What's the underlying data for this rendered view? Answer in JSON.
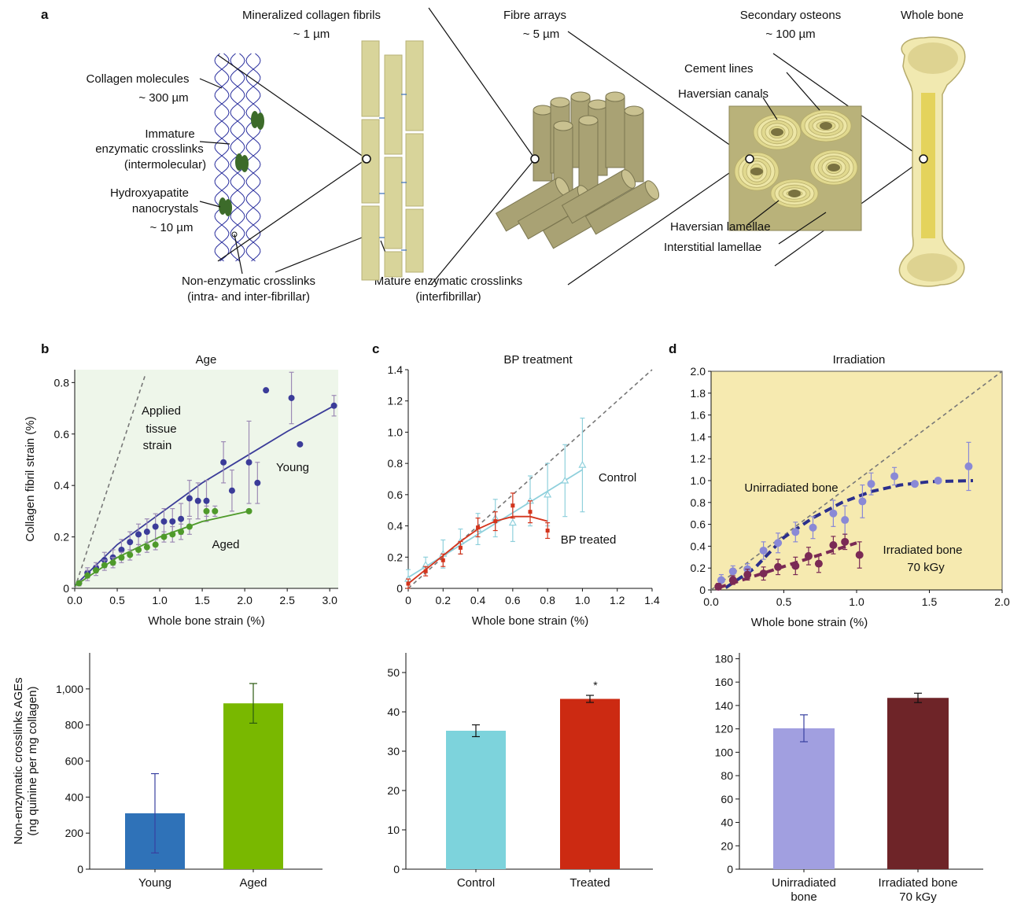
{
  "panels": {
    "a": "a",
    "b": "b",
    "c": "c",
    "d": "d"
  },
  "schematic": {
    "scales": [
      {
        "title": "Mineralized collagen fibrils",
        "size": "~ 1 µm"
      },
      {
        "title": "Fibre arrays",
        "size": "~ 5 µm"
      },
      {
        "title": "Secondary osteons",
        "size": "~ 100 µm"
      },
      {
        "title": "Whole bone",
        "size": ""
      }
    ],
    "left_labels": {
      "collagen_l1": "Collagen molecules",
      "collagen_l2": "~ 300 µm",
      "immature_l1": "Immature",
      "immature_l2": "enzymatic crosslinks",
      "immature_l3": "(intermolecular)",
      "hydroxy_l1": "Hydroxyapatite",
      "hydroxy_l2": "nanocrystals",
      "hydroxy_l3": "~ 10 µm"
    },
    "bottom_labels": {
      "nonenz_l1": "Non-enzymatic crosslinks",
      "nonenz_l2": "(intra- and inter-fibrillar)",
      "mature_l1": "Mature enzymatic crosslinks",
      "mature_l2": "(interfibrillar)"
    },
    "osteon_labels": {
      "cement": "Cement lines",
      "haversian_canals": "Haversian canals",
      "haversian_lamellae": "Haversian lamellae",
      "interstitial": "Interstitial lamellae"
    },
    "colors": {
      "fibril": "#d8d49a",
      "fibril_edge": "#b7b276",
      "collagen": "#2a2f9e",
      "crystal": "#3c6b2a",
      "osteon_bg": "#b9b27a"
    }
  },
  "chart_data": [
    {
      "type": "scatter",
      "title": "Age",
      "xlabel": "Whole bone strain (%)",
      "ylabel": "Collagen fibril strain (%)",
      "xlim": [
        0,
        3.1
      ],
      "ylim": [
        0,
        0.85
      ],
      "xticks": [
        "0.0",
        "0.5",
        "1.0",
        "1.5",
        "2.0",
        "2.5",
        "3.0"
      ],
      "yticks": [
        "0",
        "0.2",
        "0.4",
        "0.6",
        "0.8"
      ],
      "annotation_lines": [
        "Applied",
        "tissue",
        "strain"
      ],
      "series": [
        {
          "name": "Young",
          "color": "#3b3c99",
          "x": [
            0.05,
            0.15,
            0.25,
            0.35,
            0.45,
            0.55,
            0.65,
            0.75,
            0.85,
            0.95,
            1.05,
            1.15,
            1.25,
            1.35,
            1.45,
            1.55,
            1.75,
            1.85,
            2.05,
            2.15,
            2.25,
            2.55,
            2.65,
            3.05
          ],
          "y": [
            0.02,
            0.06,
            0.08,
            0.11,
            0.12,
            0.15,
            0.18,
            0.21,
            0.22,
            0.24,
            0.26,
            0.26,
            0.27,
            0.35,
            0.34,
            0.34,
            0.49,
            0.38,
            0.49,
            0.41,
            0.77,
            0.74,
            0.56,
            0.71
          ],
          "err": [
            0.01,
            0.02,
            0.02,
            0.03,
            0.03,
            0.04,
            0.04,
            0.04,
            0.05,
            0.05,
            0.05,
            0.05,
            0.06,
            0.07,
            0.07,
            0.08,
            0.08,
            0.08,
            0.16,
            0.08,
            0.0,
            0.1,
            0.0,
            0.04
          ],
          "fit_x": [
            0,
            0.5,
            1,
            1.5,
            2,
            2.5,
            3.05
          ],
          "fit_y": [
            0.01,
            0.17,
            0.29,
            0.41,
            0.51,
            0.61,
            0.71
          ]
        },
        {
          "name": "Aged",
          "color": "#4e9a2a",
          "x": [
            0.05,
            0.15,
            0.25,
            0.35,
            0.45,
            0.55,
            0.65,
            0.75,
            0.85,
            0.95,
            1.05,
            1.15,
            1.25,
            1.35,
            1.55,
            1.65,
            2.05
          ],
          "y": [
            0.02,
            0.05,
            0.07,
            0.09,
            0.1,
            0.12,
            0.13,
            0.15,
            0.16,
            0.17,
            0.2,
            0.21,
            0.22,
            0.24,
            0.3,
            0.3,
            0.3
          ],
          "err": [
            0.01,
            0.02,
            0.02,
            0.02,
            0.02,
            0.02,
            0.02,
            0.02,
            0.02,
            0.02,
            0.02,
            0.03,
            0.03,
            0.03,
            0.02,
            0.02,
            0.0
          ],
          "fit_x": [
            0,
            0.5,
            1,
            1.5,
            2.05
          ],
          "fit_y": [
            0.01,
            0.12,
            0.2,
            0.26,
            0.3
          ]
        }
      ]
    },
    {
      "type": "scatter",
      "title": "BP treatment",
      "xlabel": "Whole bone strain (%)",
      "ylabel": "",
      "xlim": [
        0,
        1.4
      ],
      "ylim": [
        0,
        1.4
      ],
      "xticks": [
        "0",
        "0.2",
        "0.4",
        "0.6",
        "0.8",
        "1.0",
        "1.2",
        "1.4"
      ],
      "yticks": [
        "0",
        "0.2",
        "0.4",
        "0.6",
        "0.8",
        "1.0",
        "1.2",
        "1.4"
      ],
      "series": [
        {
          "name": "Control",
          "color": "#8fd0dc",
          "x": [
            0.0,
            0.1,
            0.2,
            0.3,
            0.4,
            0.5,
            0.6,
            0.7,
            0.8,
            0.9,
            1.0
          ],
          "y": [
            0.06,
            0.15,
            0.22,
            0.3,
            0.38,
            0.45,
            0.42,
            0.56,
            0.6,
            0.69,
            0.79
          ],
          "err": [
            0.06,
            0.05,
            0.09,
            0.08,
            0.1,
            0.12,
            0.12,
            0.16,
            0.2,
            0.23,
            0.3
          ],
          "fit_x": [
            0,
            1.0
          ],
          "fit_y": [
            0.07,
            0.76
          ]
        },
        {
          "name": "BP treated",
          "color": "#d4341c",
          "x": [
            0.0,
            0.1,
            0.2,
            0.3,
            0.4,
            0.5,
            0.6,
            0.7,
            0.8
          ],
          "y": [
            0.03,
            0.11,
            0.18,
            0.26,
            0.39,
            0.43,
            0.53,
            0.49,
            0.37
          ],
          "err": [
            0.03,
            0.03,
            0.04,
            0.04,
            0.06,
            0.06,
            0.08,
            0.07,
            0.05
          ],
          "fit_x": [
            0,
            0.1,
            0.2,
            0.3,
            0.4,
            0.5,
            0.6,
            0.7,
            0.8
          ],
          "fit_y": [
            0.03,
            0.12,
            0.21,
            0.3,
            0.38,
            0.43,
            0.46,
            0.46,
            0.43
          ]
        }
      ]
    },
    {
      "type": "scatter",
      "title": "Irradiation",
      "xlabel": "Whole bone strain (%)",
      "ylabel": "",
      "xlim": [
        0,
        2.0
      ],
      "ylim": [
        0,
        2.0
      ],
      "xticks": [
        "0.0",
        "0.5",
        "1.0",
        "1.5",
        "2.0"
      ],
      "yticks": [
        "0",
        "0.2",
        "0.4",
        "0.6",
        "0.8",
        "1.0",
        "1.2",
        "1.4",
        "1.6",
        "1.8",
        "2.0"
      ],
      "series": [
        {
          "name": "Unirradiated bone",
          "color": "#8a89d6",
          "x": [
            0.07,
            0.15,
            0.25,
            0.36,
            0.46,
            0.58,
            0.7,
            0.84,
            0.92,
            1.04,
            1.1,
            1.26,
            1.4,
            1.56,
            1.77
          ],
          "y": [
            0.09,
            0.17,
            0.19,
            0.36,
            0.43,
            0.53,
            0.57,
            0.7,
            0.64,
            0.81,
            0.97,
            1.04,
            0.97,
            1.0,
            1.13
          ],
          "err": [
            0.05,
            0.05,
            0.05,
            0.08,
            0.09,
            0.09,
            0.1,
            0.12,
            0.13,
            0.15,
            0.1,
            0.08,
            0.02,
            0.02,
            0.22
          ],
          "fit_x": [
            0.1,
            0.3,
            0.5,
            0.7,
            0.9,
            1.1,
            1.3,
            1.5,
            1.8
          ],
          "fit_y": [
            0.02,
            0.2,
            0.48,
            0.66,
            0.8,
            0.9,
            0.96,
            0.99,
            1.0
          ]
        },
        {
          "name": "Irradiated bone",
          "name_line2": "70 kGy",
          "color": "#7a2a55",
          "x": [
            0.05,
            0.15,
            0.25,
            0.36,
            0.46,
            0.58,
            0.67,
            0.74,
            0.84,
            0.92,
            1.02
          ],
          "y": [
            0.03,
            0.09,
            0.14,
            0.15,
            0.21,
            0.22,
            0.31,
            0.24,
            0.41,
            0.44,
            0.32
          ],
          "err": [
            0.03,
            0.04,
            0.05,
            0.06,
            0.07,
            0.08,
            0.08,
            0.08,
            0.08,
            0.07,
            0.12
          ],
          "fit_x": [
            0.05,
            1.0
          ],
          "fit_y": [
            0.02,
            0.43
          ]
        }
      ]
    },
    {
      "type": "bar",
      "ylabel_l1": "Non-enzymatic crosslinks AGEs",
      "ylabel_l2": "(ng quinine per mg collagen)",
      "ylim": [
        0,
        1200
      ],
      "yticks": [
        "0",
        "200",
        "400",
        "600",
        "800",
        "1,000"
      ],
      "categories": [
        "Young",
        "Aged"
      ],
      "values": [
        310,
        920
      ],
      "errors": [
        220,
        110
      ],
      "colors": [
        "#2f72b8",
        "#79b800"
      ]
    },
    {
      "type": "bar",
      "ylim": [
        0,
        55
      ],
      "yticks": [
        "0",
        "10",
        "20",
        "30",
        "40",
        "50"
      ],
      "categories": [
        "Control",
        "Treated"
      ],
      "values": [
        35.2,
        43.3
      ],
      "errors": [
        1.5,
        0.9
      ],
      "colors": [
        "#7dd3dc",
        "#cc2a12"
      ],
      "annotation": "*"
    },
    {
      "type": "bar",
      "ylim": [
        0,
        185
      ],
      "yticks": [
        "0",
        "20",
        "40",
        "60",
        "80",
        "100",
        "120",
        "140",
        "160",
        "180"
      ],
      "categories": [
        "Unirradiated\nbone",
        "Irradiated bone\n70 kGy"
      ],
      "values": [
        120.5,
        146.5
      ],
      "errors": [
        11.5,
        4
      ],
      "colors": [
        "#a19fe0",
        "#6e2428"
      ]
    }
  ]
}
